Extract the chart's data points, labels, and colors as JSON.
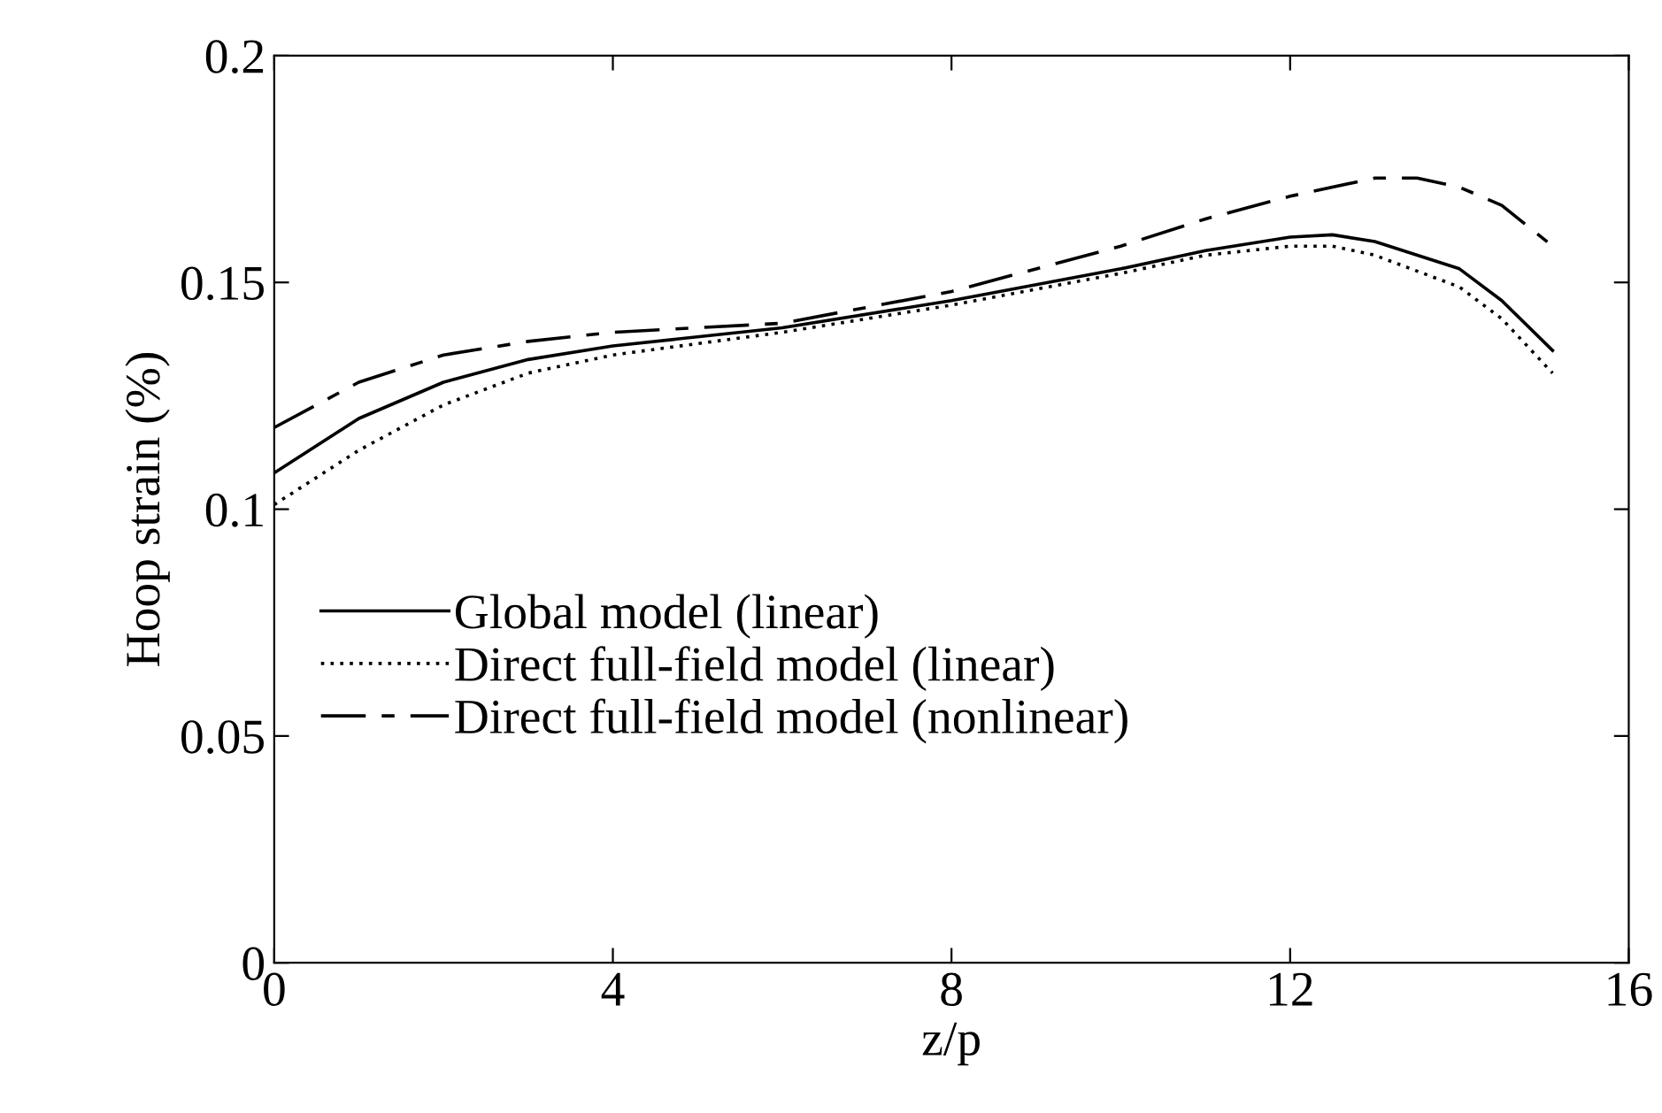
{
  "chart_data": {
    "type": "line",
    "xlabel": "z/p",
    "ylabel": "Hoop strain (%)",
    "xlim": [
      0,
      16
    ],
    "xticks": [
      0,
      4,
      8,
      12,
      16
    ],
    "ylim": [
      0,
      0.2
    ],
    "yticks": [
      0,
      0.05,
      0.1,
      0.15,
      0.2
    ],
    "grid": false,
    "legend": "left",
    "marker": "none",
    "series": [
      {
        "name": "Global model (linear)",
        "color": "#000000",
        "line_style": "solid",
        "x": [
          0,
          1,
          2,
          3,
          4,
          6,
          8,
          10,
          11,
          12,
          12.5,
          13,
          14,
          14.5,
          15.1
        ],
        "values": [
          0.108,
          0.12,
          0.128,
          0.133,
          0.136,
          0.14,
          0.146,
          0.153,
          0.157,
          0.16,
          0.1605,
          0.159,
          0.153,
          0.146,
          0.135
        ]
      },
      {
        "name": "Direct full-field model (linear)",
        "color": "#000000",
        "line_style": "dotted",
        "x": [
          0,
          1,
          2,
          3,
          4,
          6,
          8,
          10,
          11,
          12,
          12.5,
          13,
          14,
          14.5,
          15.1
        ],
        "values": [
          0.101,
          0.113,
          0.123,
          0.13,
          0.134,
          0.139,
          0.145,
          0.152,
          0.156,
          0.158,
          0.158,
          0.156,
          0.149,
          0.142,
          0.13
        ]
      },
      {
        "name": "Direct full-field model (nonlinear)",
        "color": "#000000",
        "line_style": "dashdot",
        "x": [
          0,
          1,
          2,
          3,
          4,
          6,
          8,
          10,
          11,
          12,
          13,
          13.5,
          14,
          14.5,
          15.1
        ],
        "values": [
          0.118,
          0.128,
          0.134,
          0.137,
          0.139,
          0.141,
          0.148,
          0.158,
          0.164,
          0.169,
          0.173,
          0.173,
          0.171,
          0.167,
          0.158
        ]
      }
    ]
  }
}
